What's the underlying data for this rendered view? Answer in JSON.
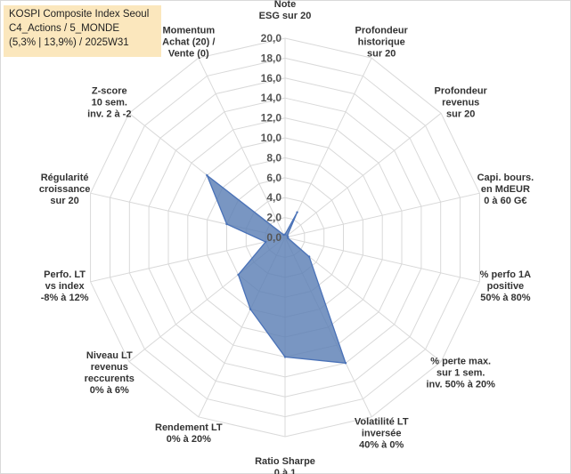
{
  "chart_data": {
    "type": "radar",
    "title_lines": [
      "KOSPI Composite Index Seoul",
      "C4_Actions / 5_MONDE",
      "(5,3% | 13,9%) / 2025W31"
    ],
    "ylim": [
      0,
      20
    ],
    "ticks": [
      "0,0",
      "2,0",
      "4,0",
      "6,0",
      "8,0",
      "10,0",
      "12,0",
      "14,0",
      "16,0",
      "18,0",
      "20,0"
    ],
    "axes": [
      {
        "label": [
          "Note",
          "ESG sur 20"
        ],
        "value": 0.3
      },
      {
        "label": [
          "Profondeur",
          "historique",
          "sur 20"
        ],
        "value": 2.8
      },
      {
        "label": [
          "Profondeur",
          "revenus",
          "sur 20"
        ],
        "value": 0.3
      },
      {
        "label": [
          "Capi. bours.",
          "en MdEUR",
          "0 à 60 G€"
        ],
        "value": 0.3
      },
      {
        "label": [
          "% perfo 1A",
          "positive",
          "50% à 80%"
        ],
        "value": 0.3
      },
      {
        "label": [
          "% perte max.",
          "sur 1 sem.",
          "inv. 50% à 20%"
        ],
        "value": 3.1
      },
      {
        "label": [
          "Volatilité LT",
          "inversée",
          "40% à 0%"
        ],
        "value": 14.0
      },
      {
        "label": [
          "Ratio Sharpe",
          "0 à 1"
        ],
        "value": 12.0
      },
      {
        "label": [
          "Rendement LT",
          "0% à 20%"
        ],
        "value": 8.0
      },
      {
        "label": [
          "Niveau LT",
          "revenus",
          "reccurents",
          "0% à 6%"
        ],
        "value": 6.0
      },
      {
        "label": [
          "Perfo. LT",
          "vs index",
          "-8% à 12%"
        ],
        "value": 2.0
      },
      {
        "label": [
          "Régularité",
          "croissance",
          "sur 20"
        ],
        "value": 6.0
      },
      {
        "label": [
          "Z-score",
          "10 sem.",
          "inv. 2 à -2"
        ],
        "value": 10.0
      },
      {
        "label": [
          "Momentum",
          "Achat (20) /",
          "Vente (0)"
        ],
        "value": 0.3
      }
    ],
    "series": [
      {
        "values": [
          0.3,
          2.8,
          0.3,
          0.3,
          0.3,
          3.1,
          14.0,
          12.0,
          8.0,
          6.0,
          2.0,
          6.0,
          10.0,
          0.3
        ]
      }
    ],
    "colors": {
      "series_fill": "#5b7fb5",
      "series_stroke": "#4a72b8",
      "grid": "#d9d9d9",
      "title_bg": "#fbe7bd"
    }
  }
}
